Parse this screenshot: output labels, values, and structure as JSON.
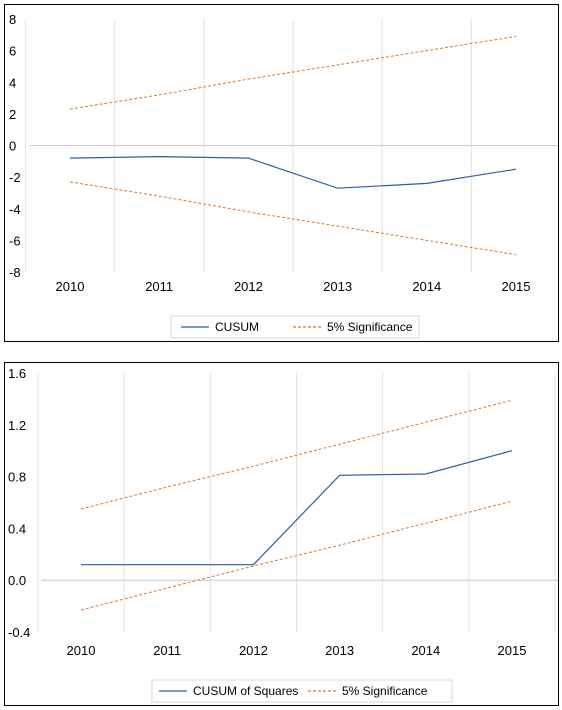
{
  "chart_data": [
    {
      "type": "line",
      "categories": [
        "2010",
        "2011",
        "2012",
        "2013",
        "2014",
        "2015"
      ],
      "series": [
        {
          "name": "CUSUM",
          "values": [
            -0.8,
            -0.7,
            -0.8,
            -2.7,
            -2.4,
            -1.5
          ],
          "color": "#2e5fa3",
          "style": "solid"
        },
        {
          "name": "5% Significance",
          "values": [
            2.3,
            3.2,
            4.2,
            5.1,
            6.0,
            6.9
          ],
          "color": "#d97a2b",
          "style": "dashed"
        },
        {
          "name": "",
          "values": [
            -2.3,
            -3.2,
            -4.2,
            -5.1,
            -6.0,
            -6.9
          ],
          "color": "#d97a2b",
          "style": "dashed"
        }
      ],
      "yticks": [
        "8",
        "6",
        "4",
        "2",
        "0",
        "-2",
        "-4",
        "-6",
        "-8"
      ],
      "ylim": [
        -8,
        8
      ],
      "grid": "vertical",
      "legend": "bottom"
    },
    {
      "type": "line",
      "categories": [
        "2010",
        "2011",
        "2012",
        "2013",
        "2014",
        "2015"
      ],
      "series": [
        {
          "name": "CUSUM of Squares",
          "values": [
            0.12,
            0.12,
            0.12,
            0.81,
            0.82,
            1.0
          ],
          "color": "#2e5fa3",
          "style": "solid"
        },
        {
          "name": "5% Significance",
          "values": [
            0.55,
            0.72,
            0.88,
            1.05,
            1.22,
            1.39
          ],
          "color": "#d97a2b",
          "style": "dashed"
        },
        {
          "name": "",
          "values": [
            -0.23,
            -0.06,
            0.11,
            0.27,
            0.44,
            0.61
          ],
          "color": "#d97a2b",
          "style": "dashed"
        }
      ],
      "yticks": [
        "1.6",
        "1.2",
        "0.8",
        "0.4",
        "0.0",
        "-0.4"
      ],
      "ylim": [
        -0.4,
        1.6
      ],
      "grid": "vertical",
      "legend": "bottom"
    }
  ]
}
